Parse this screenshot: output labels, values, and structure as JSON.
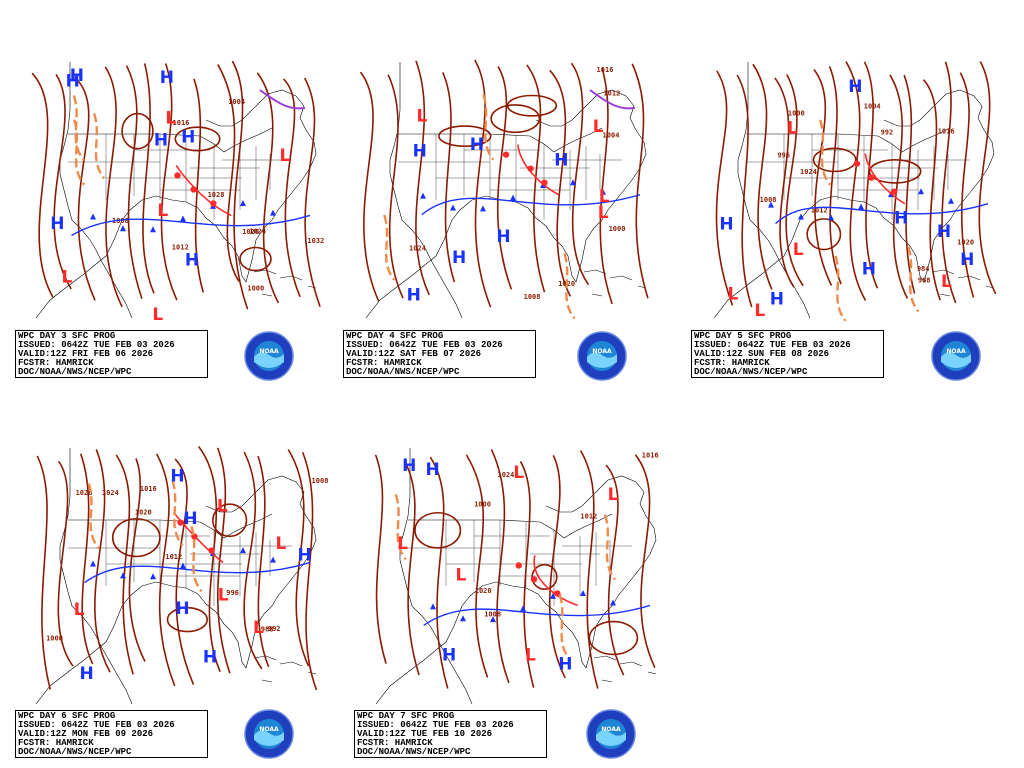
{
  "panels": [
    {
      "id": "day3",
      "lines": [
        "WPC DAY 3 SFC PROG",
        "ISSUED: 0642Z TUE FEB 03 2026",
        "VALID:12Z FRI FEB 06 2026",
        "FCSTR: HAMRICK",
        "DOC/NOAA/NWS/NCEP/WPC"
      ],
      "highs": 7,
      "lows": 5,
      "isobar_labels": [
        "1000",
        "1004",
        "1008",
        "1012",
        "1016",
        "1020",
        "1024",
        "1028",
        "1032"
      ]
    },
    {
      "id": "day4",
      "lines": [
        "WPC DAY 4 SFC PROG",
        "ISSUED: 0642Z TUE FEB 03 2026",
        "VALID:12Z SAT FEB 07 2026",
        "FCSTR: HAMRICK",
        "DOC/NOAA/NWS/NCEP/WPC"
      ],
      "highs": 6,
      "lows": 4,
      "isobar_labels": [
        "1000",
        "1004",
        "1008",
        "1012",
        "1016",
        "1020",
        "1024"
      ]
    },
    {
      "id": "day5",
      "lines": [
        "WPC DAY 5 SFC PROG",
        "ISSUED: 0642Z TUE FEB 03 2026",
        "VALID:12Z SUN FEB 08 2026",
        "FCSTR: HAMRICK",
        "DOC/NOAA/NWS/NCEP/WPC"
      ],
      "highs": 7,
      "lows": 5,
      "isobar_labels": [
        "984",
        "988",
        "992",
        "996",
        "1000",
        "1004",
        "1008",
        "1012",
        "1016",
        "1020",
        "1024"
      ]
    },
    {
      "id": "day6",
      "lines": [
        "WPC DAY 6 SFC PROG",
        "ISSUED: 0642Z TUE FEB 03 2026",
        "VALID:12Z MON FEB 09 2026",
        "FCSTR: HAMRICK",
        "DOC/NOAA/NWS/NCEP/WPC"
      ],
      "highs": 6,
      "lows": 5,
      "isobar_labels": [
        "988",
        "992",
        "996",
        "1000",
        "1008",
        "1012",
        "1016",
        "1020",
        "1024",
        "1028"
      ]
    },
    {
      "id": "day7",
      "lines": [
        "WPC DAY 7 SFC PROG",
        "ISSUED: 0642Z TUE FEB 03 2026",
        "VALID:12Z TUE FEB 10 2026",
        "FCSTR: HAMRICK",
        "DOC/NOAA/NWS/NCEP/WPC"
      ],
      "highs": 4,
      "lows": 5,
      "isobar_labels": [
        "1000",
        "1008",
        "1012",
        "1016",
        "1020",
        "1024"
      ]
    }
  ],
  "logo_text": "NOAA",
  "symbols": {
    "high": "H",
    "low": "L"
  },
  "colors": {
    "high": "#1a32ff",
    "low": "#ff2a2a",
    "isobar": "#8b1a00",
    "trough": "#f08a4b",
    "occluded": "#9b3bd6"
  }
}
